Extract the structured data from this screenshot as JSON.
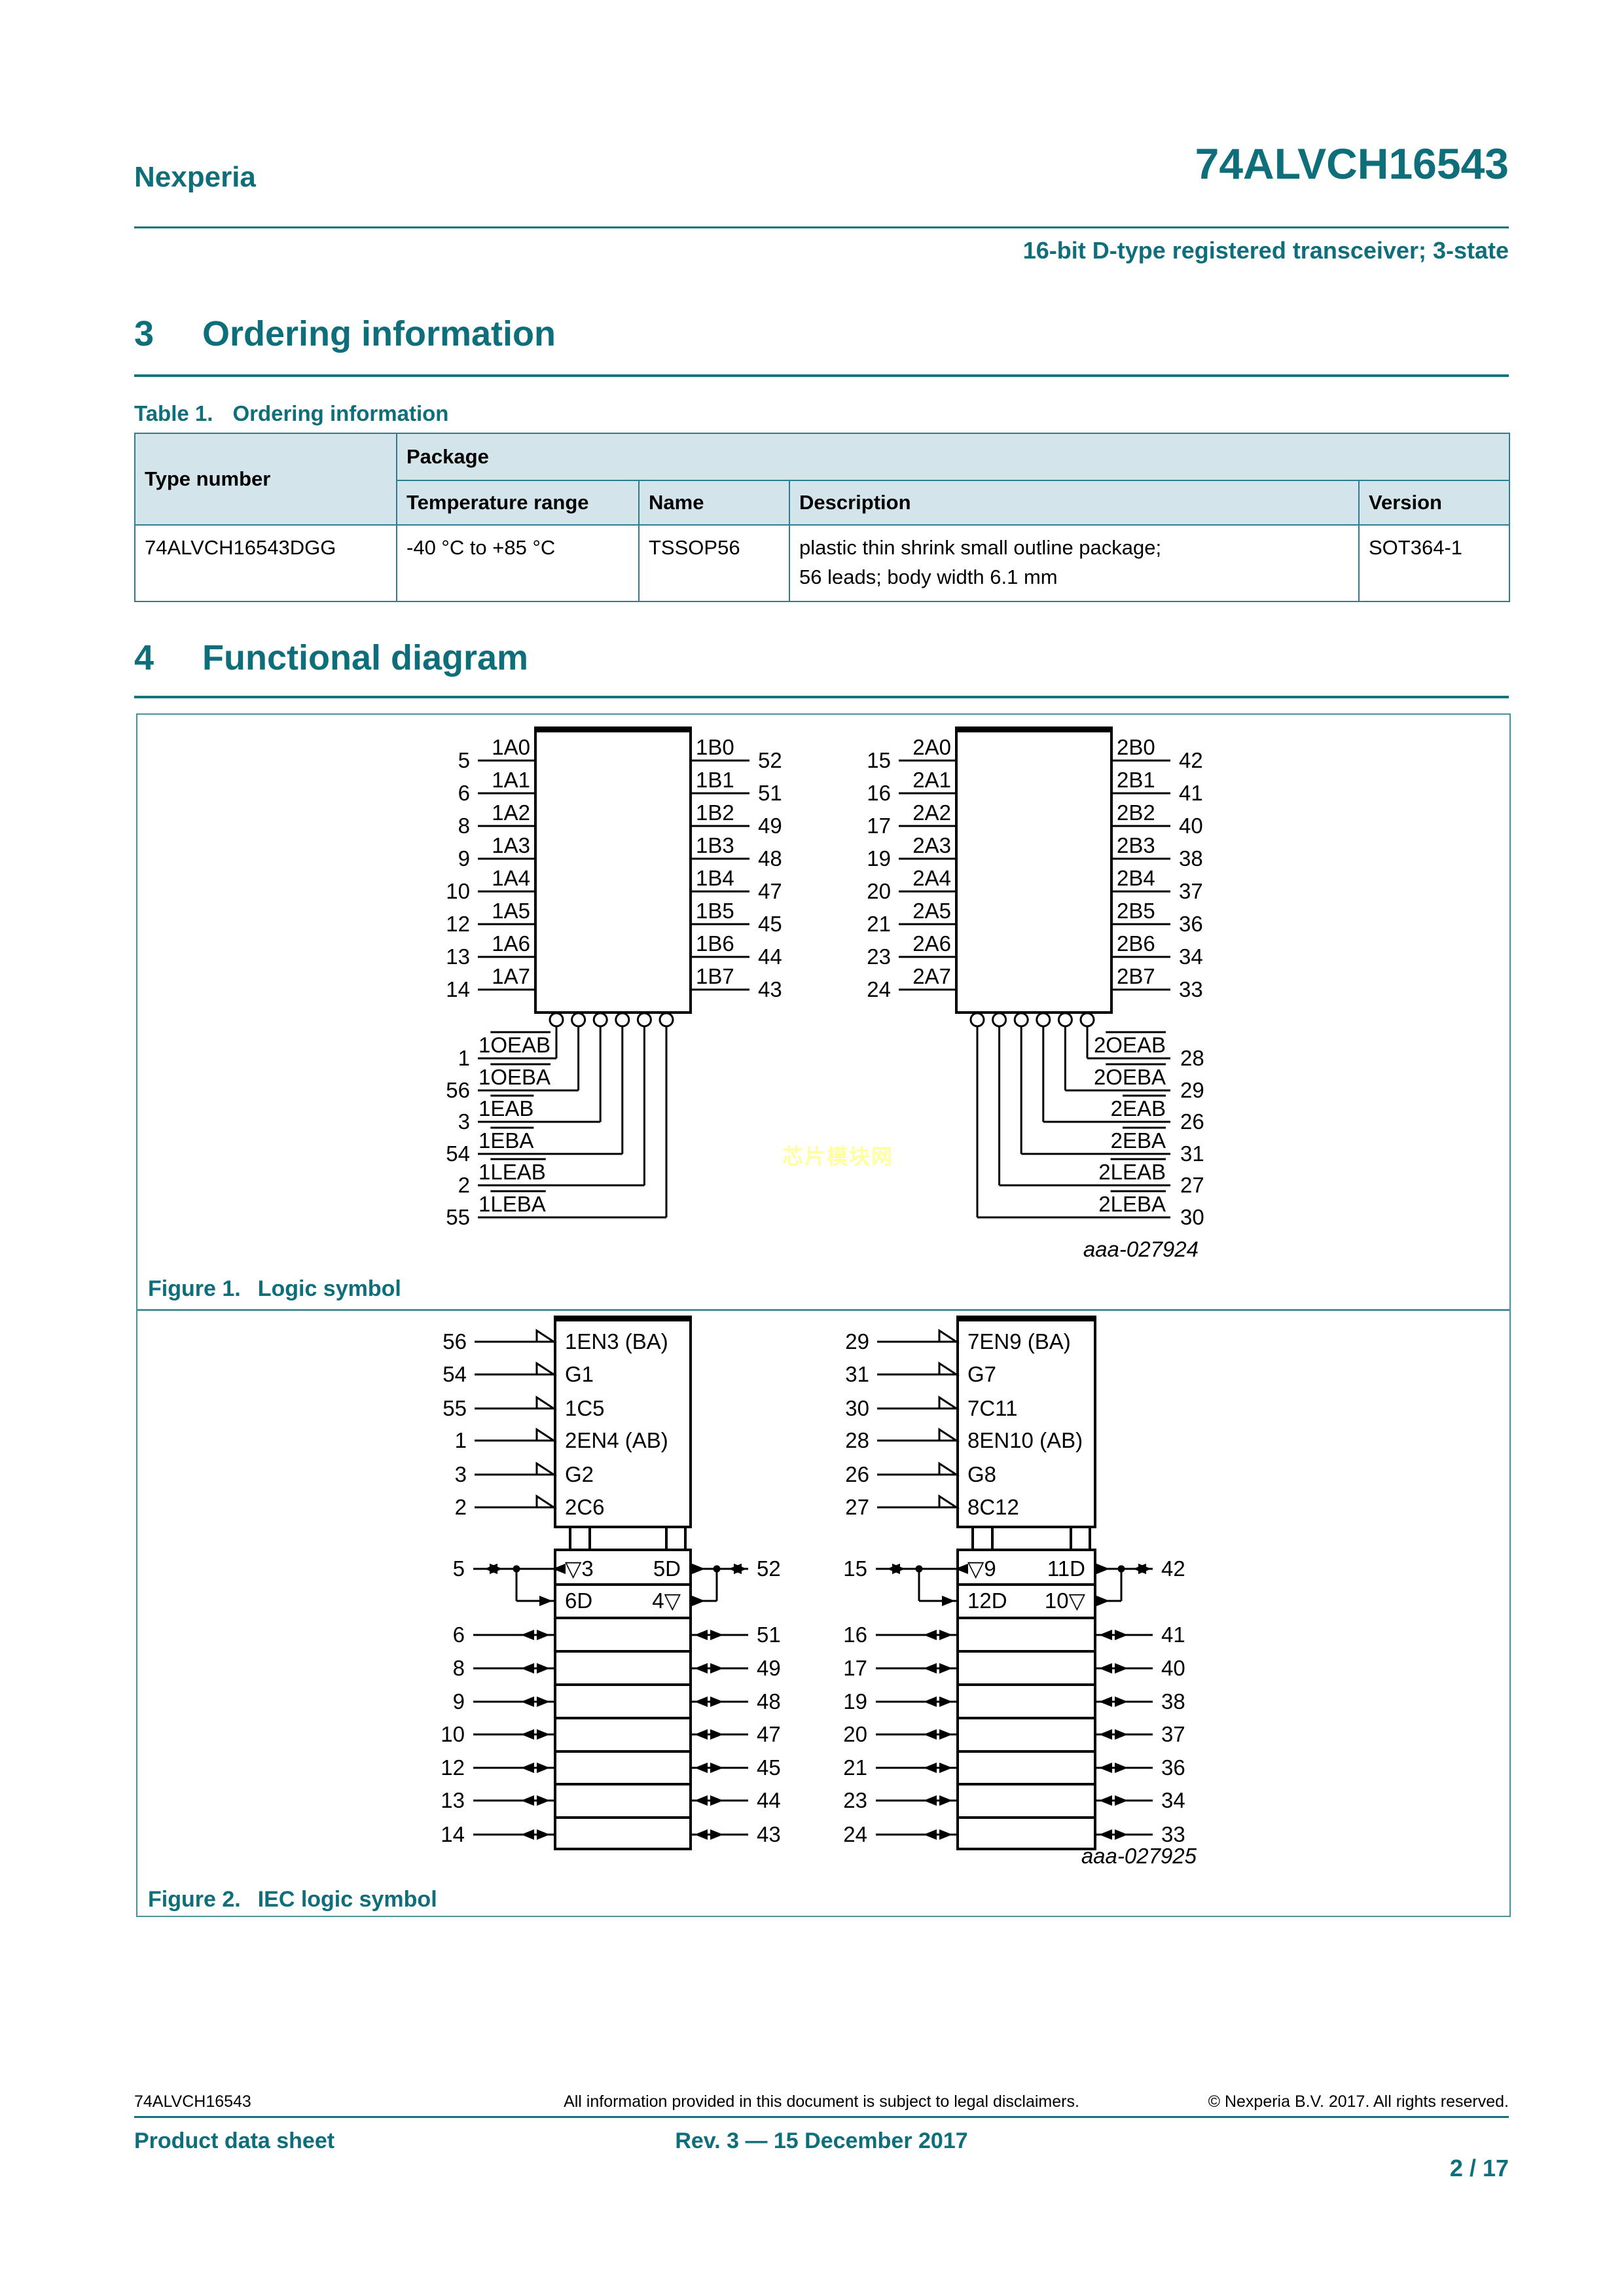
{
  "header": {
    "brand": "Nexperia",
    "part_number": "74ALVCH16543",
    "subtitle": "16-bit D-type registered transceiver; 3-state"
  },
  "sections": {
    "ordering": {
      "number": "3",
      "title": "Ordering information"
    },
    "functional": {
      "number": "4",
      "title": "Functional diagram"
    }
  },
  "table": {
    "caption_label": "Table 1.",
    "caption_text": "Ordering information",
    "headers": {
      "type_number": "Type number",
      "package": "Package",
      "temperature_range": "Temperature range",
      "name": "Name",
      "description": "Description",
      "version": "Version"
    },
    "rows": [
      {
        "type_number": "74ALVCH16543DGG",
        "temperature_range": "-40 °C to +85 °C",
        "name": "TSSOP56",
        "description_line1": "plastic thin shrink small outline package;",
        "description_line2": "56 leads; body width 6.1 mm",
        "version": "SOT364-1"
      }
    ]
  },
  "figure1": {
    "caption_label": "Figure 1.",
    "caption_text": "Logic symbol",
    "ref": "aaa-027924",
    "groups": [
      {
        "data_rows": [
          {
            "a_pin": "5",
            "a_label": "1A0",
            "b_label": "1B0",
            "b_pin": "52"
          },
          {
            "a_pin": "6",
            "a_label": "1A1",
            "b_label": "1B1",
            "b_pin": "51"
          },
          {
            "a_pin": "8",
            "a_label": "1A2",
            "b_label": "1B2",
            "b_pin": "49"
          },
          {
            "a_pin": "9",
            "a_label": "1A3",
            "b_label": "1B3",
            "b_pin": "48"
          },
          {
            "a_pin": "10",
            "a_label": "1A4",
            "b_label": "1B4",
            "b_pin": "47"
          },
          {
            "a_pin": "12",
            "a_label": "1A5",
            "b_label": "1B5",
            "b_pin": "45"
          },
          {
            "a_pin": "13",
            "a_label": "1A6",
            "b_label": "1B6",
            "b_pin": "44"
          },
          {
            "a_pin": "14",
            "a_label": "1A7",
            "b_label": "1B7",
            "b_pin": "43"
          }
        ],
        "control_rows": [
          {
            "pin": "1",
            "label": "1OEAB"
          },
          {
            "pin": "56",
            "label": "1OEBA"
          },
          {
            "pin": "3",
            "label": "1EAB"
          },
          {
            "pin": "54",
            "label": "1EBA"
          },
          {
            "pin": "2",
            "label": "1LEAB"
          },
          {
            "pin": "55",
            "label": "1LEBA"
          }
        ]
      },
      {
        "data_rows": [
          {
            "a_pin": "15",
            "a_label": "2A0",
            "b_label": "2B0",
            "b_pin": "42"
          },
          {
            "a_pin": "16",
            "a_label": "2A1",
            "b_label": "2B1",
            "b_pin": "41"
          },
          {
            "a_pin": "17",
            "a_label": "2A2",
            "b_label": "2B2",
            "b_pin": "40"
          },
          {
            "a_pin": "19",
            "a_label": "2A3",
            "b_label": "2B3",
            "b_pin": "38"
          },
          {
            "a_pin": "20",
            "a_label": "2A4",
            "b_label": "2B4",
            "b_pin": "37"
          },
          {
            "a_pin": "21",
            "a_label": "2A5",
            "b_label": "2B5",
            "b_pin": "36"
          },
          {
            "a_pin": "23",
            "a_label": "2A6",
            "b_label": "2B6",
            "b_pin": "34"
          },
          {
            "a_pin": "24",
            "a_label": "2A7",
            "b_label": "2B7",
            "b_pin": "33"
          }
        ],
        "control_rows": [
          {
            "pin": "28",
            "label": "2OEAB"
          },
          {
            "pin": "29",
            "label": "2OEBA"
          },
          {
            "pin": "26",
            "label": "2EAB"
          },
          {
            "pin": "31",
            "label": "2EBA"
          },
          {
            "pin": "27",
            "label": "2LEAB"
          },
          {
            "pin": "30",
            "label": "2LEBA"
          }
        ]
      }
    ]
  },
  "figure2": {
    "caption_label": "Figure 2.",
    "caption_text": "IEC logic symbol",
    "ref": "aaa-027925",
    "groups": [
      {
        "control_inputs": [
          {
            "pin": "56",
            "label": "1EN3 (BA)"
          },
          {
            "pin": "54",
            "label": "G1"
          },
          {
            "pin": "55",
            "label": "1C5"
          },
          {
            "pin": "1",
            "label": "2EN4 (AB)"
          },
          {
            "pin": "3",
            "label": "G2"
          },
          {
            "pin": "2",
            "label": "2C6"
          }
        ],
        "row_a": {
          "left_pin": "5",
          "left_label": "▽3",
          "right_label": "5D",
          "right_pin": "52"
        },
        "row_b": {
          "left_label": "6D",
          "right_label": "4▽"
        },
        "data_rows": [
          {
            "left": "6",
            "right": "51"
          },
          {
            "left": "8",
            "right": "49"
          },
          {
            "left": "9",
            "right": "48"
          },
          {
            "left": "10",
            "right": "47"
          },
          {
            "left": "12",
            "right": "45"
          },
          {
            "left": "13",
            "right": "44"
          },
          {
            "left": "14",
            "right": "43"
          }
        ]
      },
      {
        "control_inputs": [
          {
            "pin": "29",
            "label": "7EN9 (BA)"
          },
          {
            "pin": "31",
            "label": "G7"
          },
          {
            "pin": "30",
            "label": "7C11"
          },
          {
            "pin": "28",
            "label": "8EN10 (AB)"
          },
          {
            "pin": "26",
            "label": "G8"
          },
          {
            "pin": "27",
            "label": "8C12"
          }
        ],
        "row_a": {
          "left_pin": "15",
          "left_label": "▽9",
          "right_label": "11D",
          "right_pin": "42"
        },
        "row_b": {
          "left_label": "12D",
          "right_label": "10▽"
        },
        "data_rows": [
          {
            "left": "16",
            "right": "41"
          },
          {
            "left": "17",
            "right": "40"
          },
          {
            "left": "19",
            "right": "38"
          },
          {
            "left": "20",
            "right": "37"
          },
          {
            "left": "21",
            "right": "36"
          },
          {
            "left": "23",
            "right": "34"
          },
          {
            "left": "24",
            "right": "33"
          }
        ]
      }
    ]
  },
  "watermark": "芯片模块网",
  "footer": {
    "part": "74ALVCH16543",
    "disclaimer": "All information provided in this document is subject to legal disclaimers.",
    "copyright": "© Nexperia B.V. 2017. All rights reserved.",
    "doc_type": "Product data sheet",
    "revision": "Rev. 3 — 15 December 2017",
    "page": "2 / 17"
  }
}
